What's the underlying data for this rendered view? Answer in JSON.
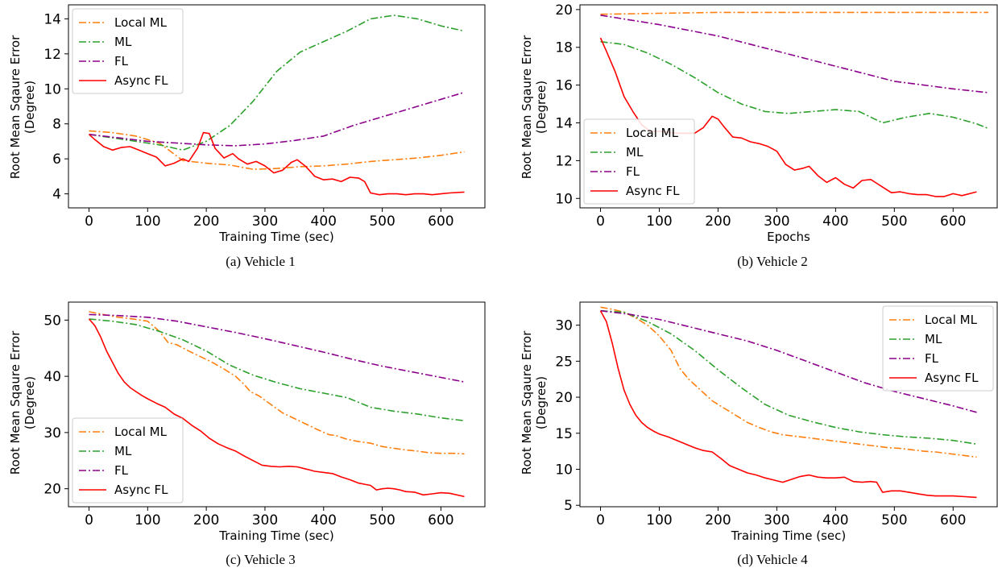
{
  "legend_entries": [
    {
      "name": "Local ML",
      "color": "#ff7f0e",
      "dash": "dashdot"
    },
    {
      "name": "ML",
      "color": "#2ca02c",
      "dash": "dashdot"
    },
    {
      "name": "FL",
      "color": "#8b008b",
      "dash": "dashdot"
    },
    {
      "name": "Async FL",
      "color": "#ff0000",
      "dash": "solid"
    }
  ],
  "chart_data": [
    {
      "type": "line",
      "caption": "(a)  Vehicle 1",
      "xlabel": "Training Time (sec)",
      "ylabel": [
        "Root Mean Sqaure Error",
        "(Degree)"
      ],
      "xlim": [
        -35,
        675
      ],
      "ylim": [
        3.2,
        14.8
      ],
      "xticks": [
        0,
        100,
        200,
        300,
        400,
        500,
        600
      ],
      "yticks": [
        4,
        6,
        8,
        10,
        12,
        14
      ],
      "legend": "upper-left",
      "series": [
        {
          "name": "Local ML",
          "x": [
            0,
            40,
            80,
            120,
            160,
            200,
            240,
            280,
            320,
            360,
            400,
            440,
            480,
            520,
            560,
            600,
            640
          ],
          "y": [
            7.6,
            7.5,
            7.3,
            6.9,
            5.9,
            5.75,
            5.65,
            5.4,
            5.45,
            5.55,
            5.6,
            5.7,
            5.85,
            5.95,
            6.05,
            6.2,
            6.4
          ]
        },
        {
          "name": "ML",
          "x": [
            0,
            40,
            80,
            120,
            160,
            200,
            240,
            280,
            320,
            360,
            400,
            440,
            480,
            520,
            560,
            600,
            640
          ],
          "y": [
            7.4,
            7.2,
            7.0,
            6.8,
            6.5,
            7.0,
            7.9,
            9.3,
            11.0,
            12.1,
            12.7,
            13.3,
            14.0,
            14.2,
            14.0,
            13.6,
            13.3
          ]
        },
        {
          "name": "FL",
          "x": [
            0,
            50,
            100,
            150,
            200,
            250,
            300,
            350,
            400,
            450,
            500,
            550,
            600,
            640
          ],
          "y": [
            7.4,
            7.2,
            7.0,
            6.9,
            6.8,
            6.75,
            6.85,
            7.05,
            7.3,
            7.9,
            8.4,
            8.9,
            9.4,
            9.8
          ]
        },
        {
          "name": "Async FL",
          "x": [
            0,
            10,
            25,
            40,
            55,
            70,
            85,
            100,
            115,
            130,
            145,
            160,
            170,
            185,
            195,
            205,
            215,
            230,
            245,
            255,
            270,
            285,
            300,
            315,
            330,
            345,
            355,
            370,
            385,
            400,
            415,
            430,
            445,
            460,
            470,
            480,
            495,
            510,
            525,
            540,
            555,
            570,
            585,
            600,
            615,
            640
          ],
          "y": [
            7.4,
            7.1,
            6.7,
            6.5,
            6.65,
            6.7,
            6.5,
            6.3,
            6.1,
            5.6,
            5.75,
            6.0,
            5.85,
            6.6,
            7.5,
            7.45,
            6.6,
            6.05,
            6.3,
            6.0,
            5.7,
            5.85,
            5.6,
            5.2,
            5.35,
            5.8,
            5.95,
            5.55,
            5.0,
            4.8,
            4.85,
            4.7,
            4.95,
            4.9,
            4.7,
            4.05,
            3.95,
            4.0,
            4.0,
            3.95,
            4.0,
            4.0,
            3.95,
            4.0,
            4.05,
            4.1
          ]
        }
      ]
    },
    {
      "type": "line",
      "caption": "(b)  Vehicle 2",
      "xlabel": "Epochs",
      "ylabel": [
        "Root Mean Sqaure Error",
        "(Degree)"
      ],
      "xlim": [
        -35,
        675
      ],
      "ylim": [
        9.5,
        20.25
      ],
      "xticks": [
        0,
        100,
        200,
        300,
        400,
        500,
        600
      ],
      "yticks": [
        10,
        12,
        14,
        16,
        18,
        20
      ],
      "legend": "lower-left",
      "series": [
        {
          "name": "Local ML",
          "x": [
            0,
            100,
            200,
            300,
            400,
            500,
            600,
            660
          ],
          "y": [
            19.75,
            19.8,
            19.85,
            19.85,
            19.85,
            19.85,
            19.85,
            19.85
          ]
        },
        {
          "name": "ML",
          "x": [
            0,
            40,
            80,
            120,
            160,
            200,
            240,
            280,
            320,
            360,
            400,
            440,
            480,
            520,
            560,
            600,
            640,
            660
          ],
          "y": [
            18.3,
            18.15,
            17.7,
            17.1,
            16.4,
            15.6,
            15.0,
            14.6,
            14.5,
            14.6,
            14.7,
            14.6,
            14.0,
            14.3,
            14.5,
            14.3,
            13.95,
            13.7
          ]
        },
        {
          "name": "FL",
          "x": [
            0,
            100,
            200,
            300,
            400,
            500,
            600,
            660
          ],
          "y": [
            19.7,
            19.2,
            18.6,
            17.8,
            17.0,
            16.2,
            15.8,
            15.6
          ]
        },
        {
          "name": "Async FL",
          "x": [
            0,
            10,
            25,
            40,
            55,
            70,
            85,
            100,
            115,
            130,
            145,
            160,
            175,
            190,
            200,
            210,
            225,
            240,
            255,
            270,
            285,
            300,
            315,
            330,
            345,
            355,
            370,
            385,
            400,
            415,
            430,
            445,
            460,
            470,
            480,
            495,
            510,
            525,
            540,
            555,
            570,
            585,
            600,
            615,
            640
          ],
          "y": [
            18.5,
            17.8,
            16.7,
            15.4,
            14.6,
            13.9,
            13.55,
            13.55,
            13.5,
            13.45,
            13.45,
            13.45,
            13.75,
            14.35,
            14.2,
            13.8,
            13.25,
            13.2,
            13.0,
            12.9,
            12.75,
            12.5,
            11.8,
            11.5,
            11.6,
            11.7,
            11.2,
            10.85,
            11.1,
            10.75,
            10.55,
            10.95,
            11.0,
            10.8,
            10.6,
            10.3,
            10.35,
            10.25,
            10.2,
            10.2,
            10.1,
            10.1,
            10.25,
            10.15,
            10.35
          ]
        }
      ]
    },
    {
      "type": "line",
      "caption": "(c)  Vehicle 3",
      "xlabel": "Training Time (sec)",
      "ylabel": [
        "Root Mean Sqaure Error",
        "(Degree)"
      ],
      "xlim": [
        -35,
        675
      ],
      "ylim": [
        16.8,
        53.2
      ],
      "xticks": [
        0,
        100,
        200,
        300,
        400,
        500,
        600
      ],
      "yticks": [
        20,
        30,
        40,
        50
      ],
      "legend": "lower-left",
      "series": [
        {
          "name": "Local ML",
          "x": [
            0,
            25,
            50,
            75,
            100,
            120,
            135,
            150,
            170,
            190,
            210,
            230,
            250,
            265,
            275,
            290,
            310,
            330,
            350,
            370,
            390,
            410,
            420,
            440,
            460,
            480,
            500,
            520,
            540,
            560,
            580,
            600,
            620,
            640
          ],
          "y": [
            51.5,
            51.0,
            50.5,
            50.2,
            49.8,
            48.0,
            46.0,
            45.6,
            44.5,
            43.5,
            42.5,
            41.3,
            40.0,
            38.5,
            37.3,
            36.5,
            35.0,
            33.5,
            32.5,
            31.5,
            30.5,
            29.6,
            29.5,
            28.8,
            28.4,
            28.1,
            27.5,
            27.2,
            26.9,
            26.7,
            26.4,
            26.3,
            26.3,
            26.2
          ]
        },
        {
          "name": "ML",
          "x": [
            0,
            40,
            80,
            120,
            160,
            200,
            240,
            280,
            320,
            360,
            400,
            440,
            480,
            520,
            560,
            600,
            640
          ],
          "y": [
            50.2,
            49.8,
            49.2,
            48.0,
            46.5,
            44.5,
            42.0,
            40.2,
            38.9,
            37.8,
            37.0,
            36.2,
            34.5,
            33.8,
            33.3,
            32.6,
            32.1
          ]
        },
        {
          "name": "FL",
          "x": [
            0,
            50,
            100,
            150,
            200,
            250,
            300,
            350,
            400,
            450,
            500,
            550,
            600,
            640
          ],
          "y": [
            51.0,
            50.8,
            50.5,
            49.8,
            48.8,
            47.8,
            46.7,
            45.5,
            44.3,
            43.0,
            41.8,
            40.8,
            39.8,
            39.0
          ]
        },
        {
          "name": "Async FL",
          "x": [
            0,
            10,
            20,
            30,
            40,
            50,
            60,
            70,
            80,
            90,
            100,
            115,
            130,
            145,
            160,
            175,
            190,
            205,
            220,
            235,
            250,
            265,
            280,
            295,
            310,
            325,
            340,
            355,
            370,
            385,
            400,
            415,
            430,
            445,
            460,
            470,
            480,
            490,
            500,
            510,
            520,
            530,
            540,
            555,
            570,
            585,
            600,
            615,
            640
          ],
          "y": [
            50.2,
            49.0,
            47.0,
            44.5,
            42.5,
            40.5,
            39.0,
            38.0,
            37.3,
            36.6,
            36.0,
            35.2,
            34.5,
            33.3,
            32.5,
            31.3,
            30.3,
            29.0,
            28.0,
            27.3,
            26.7,
            25.8,
            25.0,
            24.2,
            24.0,
            23.9,
            24.0,
            23.9,
            23.5,
            23.1,
            22.9,
            22.7,
            22.1,
            21.6,
            21.0,
            20.8,
            20.6,
            19.8,
            20.0,
            20.1,
            20.0,
            19.8,
            19.5,
            19.4,
            18.9,
            19.1,
            19.3,
            19.2,
            18.6
          ]
        }
      ]
    },
    {
      "type": "line",
      "caption": "(d)  Vehicle 4",
      "xlabel": "Training Time (sec)",
      "ylabel": [
        "Root Mean Sqaure Error",
        "(Degree)"
      ],
      "xlim": [
        -35,
        675
      ],
      "ylim": [
        4.8,
        33.2
      ],
      "xticks": [
        0,
        100,
        200,
        300,
        400,
        500,
        600
      ],
      "yticks": [
        5,
        10,
        15,
        20,
        25,
        30
      ],
      "legend": "upper-right",
      "series": [
        {
          "name": "Local ML",
          "x": [
            0,
            20,
            40,
            60,
            80,
            100,
            120,
            135,
            150,
            170,
            190,
            210,
            230,
            250,
            270,
            290,
            310,
            330,
            350,
            370,
            390,
            410,
            430,
            450,
            470,
            490,
            510,
            530,
            550,
            570,
            590,
            610,
            640
          ],
          "y": [
            32.5,
            32.2,
            31.8,
            31.0,
            30.0,
            28.5,
            26.5,
            24.0,
            22.5,
            21.0,
            19.5,
            18.5,
            17.5,
            16.5,
            15.8,
            15.2,
            14.8,
            14.6,
            14.4,
            14.2,
            14.0,
            13.8,
            13.6,
            13.4,
            13.2,
            13.0,
            12.9,
            12.7,
            12.5,
            12.4,
            12.2,
            12.0,
            11.7
          ]
        },
        {
          "name": "ML",
          "x": [
            0,
            40,
            80,
            120,
            160,
            200,
            240,
            280,
            320,
            360,
            400,
            440,
            480,
            520,
            560,
            600,
            640
          ],
          "y": [
            32.0,
            31.8,
            30.5,
            28.8,
            26.5,
            23.8,
            21.3,
            19.0,
            17.5,
            16.6,
            15.8,
            15.2,
            14.8,
            14.5,
            14.3,
            14.0,
            13.5
          ]
        },
        {
          "name": "FL",
          "x": [
            0,
            50,
            100,
            150,
            200,
            250,
            300,
            350,
            400,
            450,
            500,
            550,
            600,
            640
          ],
          "y": [
            32.0,
            31.5,
            30.8,
            29.8,
            28.8,
            27.8,
            26.5,
            25.0,
            23.5,
            22.0,
            20.8,
            19.8,
            18.8,
            17.9
          ]
        },
        {
          "name": "Async FL",
          "x": [
            0,
            10,
            20,
            30,
            40,
            50,
            60,
            70,
            80,
            90,
            100,
            115,
            130,
            145,
            160,
            175,
            190,
            205,
            220,
            235,
            250,
            265,
            280,
            295,
            310,
            325,
            340,
            355,
            370,
            385,
            400,
            415,
            430,
            445,
            460,
            470,
            480,
            495,
            510,
            525,
            540,
            555,
            570,
            585,
            600,
            620,
            640
          ],
          "y": [
            32.0,
            30.5,
            27.5,
            24.0,
            21.0,
            19.0,
            17.5,
            16.5,
            15.8,
            15.3,
            14.9,
            14.5,
            14.0,
            13.5,
            13.0,
            12.6,
            12.4,
            11.5,
            10.5,
            10.0,
            9.5,
            9.2,
            8.8,
            8.5,
            8.2,
            8.6,
            9.0,
            9.2,
            8.9,
            8.8,
            8.8,
            8.9,
            8.3,
            8.2,
            8.3,
            8.2,
            6.8,
            7.0,
            7.0,
            6.8,
            6.6,
            6.4,
            6.3,
            6.3,
            6.3,
            6.2,
            6.1
          ]
        }
      ]
    }
  ]
}
